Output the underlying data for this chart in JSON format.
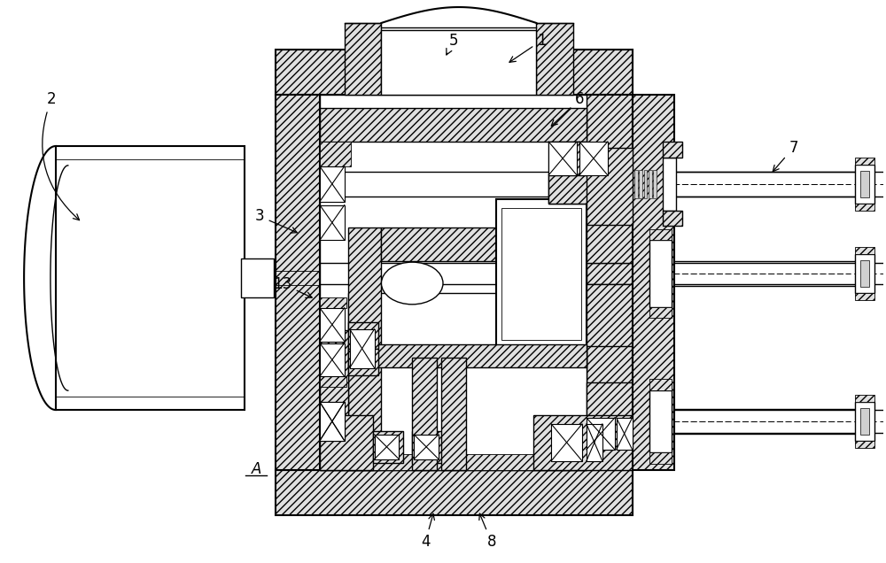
{
  "bg_color": "#ffffff",
  "lc": "#000000",
  "fig_w": 10.0,
  "fig_h": 6.36,
  "fs": 12
}
